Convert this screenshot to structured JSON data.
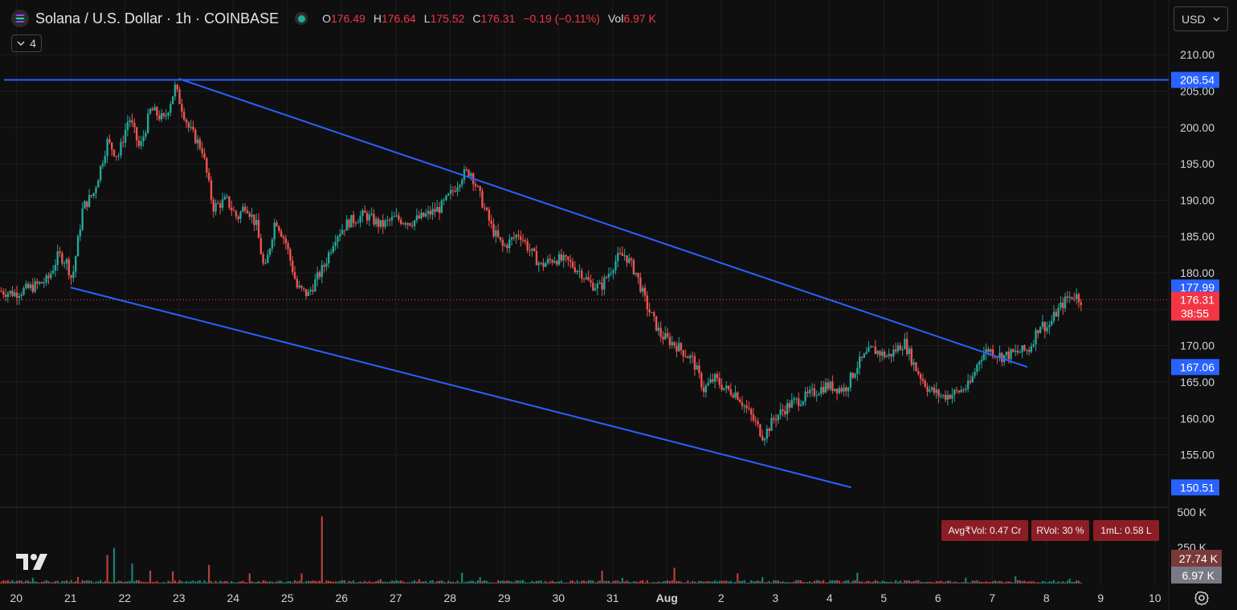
{
  "header": {
    "symbol": "Solana / U.S. Dollar · 1h · COINBASE",
    "collapse_count": "4",
    "ohlc": [
      {
        "key": "O",
        "value": "176.49"
      },
      {
        "key": "H",
        "value": "176.64"
      },
      {
        "key": "L",
        "value": "175.52"
      },
      {
        "key": "C",
        "value": "176.31"
      },
      {
        "key": "",
        "value": "−0.19 (−0.11%)"
      },
      {
        "key": "Vol",
        "value": "6.97 K"
      }
    ]
  },
  "currency": "USD",
  "stats": [
    {
      "label": "Avg₹Vol: 0.47 Cr"
    },
    {
      "label": "RVol: 30 %"
    },
    {
      "label": "1mL: 0.58 L"
    }
  ],
  "colors": {
    "background": "#0f0f0f",
    "up": "#26a69a",
    "down": "#ef5350",
    "trendline": "#2962ff",
    "last_price": "#f23645",
    "grid": "#1e1e1e"
  },
  "chart_data": {
    "type": "candlestick",
    "interval": "1h",
    "x_tick_labels": [
      "20",
      "21",
      "22",
      "23",
      "24",
      "25",
      "26",
      "27",
      "28",
      "29",
      "30",
      "31",
      "Aug",
      "2",
      "3",
      "4",
      "5",
      "6",
      "7",
      "8",
      "9",
      "10"
    ],
    "y_tick_labels": [
      "210.00",
      "205.00",
      "200.00",
      "195.00",
      "190.00",
      "185.00",
      "180.00",
      "175.00",
      "170.00",
      "165.00",
      "160.00",
      "155.00"
    ],
    "y_range": [
      148,
      213
    ],
    "last_price": 176.31,
    "countdown": "38:55",
    "price_path": [
      [
        19.7,
        177.5
      ],
      [
        20.0,
        177.2
      ],
      [
        20.3,
        178.0
      ],
      [
        20.6,
        179.0
      ],
      [
        20.8,
        182.5
      ],
      [
        20.95,
        181.5
      ],
      [
        21.05,
        179.0
      ],
      [
        21.25,
        189.0
      ],
      [
        21.45,
        191.0
      ],
      [
        21.7,
        198.0
      ],
      [
        21.9,
        196.0
      ],
      [
        22.1,
        201.5
      ],
      [
        22.3,
        197.0
      ],
      [
        22.5,
        202.5
      ],
      [
        22.75,
        201.0
      ],
      [
        22.95,
        205.5
      ],
      [
        23.2,
        200.0
      ],
      [
        23.45,
        197.0
      ],
      [
        23.65,
        189.0
      ],
      [
        23.9,
        190.0
      ],
      [
        24.1,
        187.5
      ],
      [
        24.25,
        189.5
      ],
      [
        24.45,
        186.5
      ],
      [
        24.6,
        180.0
      ],
      [
        24.8,
        187.5
      ],
      [
        25.0,
        184.0
      ],
      [
        25.2,
        178.0
      ],
      [
        25.4,
        177.0
      ],
      [
        25.7,
        181.0
      ],
      [
        25.9,
        185.0
      ],
      [
        26.15,
        187.0
      ],
      [
        26.45,
        188.0
      ],
      [
        26.75,
        186.5
      ],
      [
        27.0,
        187.5
      ],
      [
        27.3,
        187.0
      ],
      [
        27.6,
        188.0
      ],
      [
        27.85,
        189.0
      ],
      [
        28.05,
        191.0
      ],
      [
        28.25,
        193.5
      ],
      [
        28.4,
        194.0
      ],
      [
        28.6,
        190.0
      ],
      [
        28.8,
        186.0
      ],
      [
        29.0,
        183.5
      ],
      [
        29.3,
        185.5
      ],
      [
        29.5,
        183.0
      ],
      [
        29.7,
        181.0
      ],
      [
        29.95,
        182.0
      ],
      [
        30.2,
        181.5
      ],
      [
        30.45,
        180.0
      ],
      [
        30.6,
        178.5
      ],
      [
        30.8,
        178.0
      ],
      [
        30.95,
        180.0
      ],
      [
        31.1,
        182.0
      ],
      [
        31.25,
        182.5
      ],
      [
        31.45,
        180.0
      ],
      [
        31.65,
        175.5
      ],
      [
        31.9,
        171.5
      ],
      [
        32.2,
        170.0
      ],
      [
        32.5,
        168.0
      ],
      [
        32.7,
        164.0
      ],
      [
        32.9,
        165.5
      ],
      [
        33.1,
        164.0
      ],
      [
        33.3,
        163.5
      ],
      [
        33.6,
        160.0
      ],
      [
        33.8,
        157.5
      ],
      [
        34.0,
        160.0
      ],
      [
        34.3,
        162.0
      ],
      [
        34.6,
        163.0
      ],
      [
        34.95,
        164.5
      ],
      [
        35.3,
        164.0
      ],
      [
        35.55,
        167.5
      ],
      [
        35.8,
        169.5
      ],
      [
        36.1,
        168.5
      ],
      [
        36.4,
        170.5
      ],
      [
        36.6,
        167.0
      ],
      [
        36.85,
        164.0
      ],
      [
        37.1,
        163.0
      ],
      [
        37.35,
        163.5
      ],
      [
        37.6,
        164.5
      ],
      [
        37.8,
        168.5
      ],
      [
        37.95,
        169.5
      ],
      [
        38.2,
        168.5
      ],
      [
        38.45,
        169.0
      ],
      [
        38.7,
        169.5
      ],
      [
        38.9,
        173.0
      ],
      [
        39.05,
        172.5
      ],
      [
        39.2,
        174.5
      ],
      [
        39.4,
        176.5
      ],
      [
        39.55,
        177.0
      ],
      [
        39.65,
        176.3
      ]
    ],
    "trendlines": [
      {
        "type": "horizontal",
        "price": 206.54
      },
      {
        "type": "segment",
        "x1": 23.0,
        "y1": 206.7,
        "x2": 38.65,
        "y2": 167.06
      },
      {
        "type": "segment",
        "x1": 21.0,
        "y1": 178.0,
        "x2": 35.4,
        "y2": 150.51
      },
      {
        "type": "horizontal-dotted",
        "price": 176.31
      }
    ],
    "price_labels": [
      {
        "text": "206.54",
        "price": 206.54,
        "color": "#2962ff"
      },
      {
        "text": "177.99",
        "price": 177.99,
        "color": "#2962ff"
      },
      {
        "text": "176.31",
        "price": 176.31,
        "color": "#f23645"
      },
      {
        "text": "167.06",
        "price": 167.06,
        "color": "#2962ff"
      },
      {
        "text": "150.51",
        "price": 150.51,
        "color": "#2962ff"
      }
    ],
    "volume": {
      "axis_labels": [
        "500 K",
        "250 K"
      ],
      "max": 500,
      "avg_label": "27.74 K",
      "last_label": "6.97 K",
      "spikes": [
        [
          20.3,
          40
        ],
        [
          21.1,
          45
        ],
        [
          21.65,
          200
        ],
        [
          21.8,
          250
        ],
        [
          22.1,
          140
        ],
        [
          22.45,
          90
        ],
        [
          22.85,
          85
        ],
        [
          23.55,
          130
        ],
        [
          24.3,
          70
        ],
        [
          25.25,
          70
        ],
        [
          25.6,
          470
        ],
        [
          26.7,
          30
        ],
        [
          27.4,
          30
        ],
        [
          28.2,
          75
        ],
        [
          28.55,
          45
        ],
        [
          30.8,
          90
        ],
        [
          31.15,
          40
        ],
        [
          32.1,
          110
        ],
        [
          33.3,
          70
        ],
        [
          33.75,
          45
        ],
        [
          35.5,
          75
        ],
        [
          37.5,
          40
        ],
        [
          38.4,
          50
        ],
        [
          39.4,
          35
        ]
      ]
    }
  }
}
